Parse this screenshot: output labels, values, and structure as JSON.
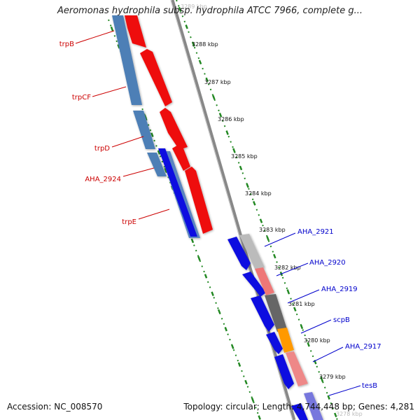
{
  "title": "Aeromonas hydrophila subsp. hydrophila ATCC 7966, complete g...",
  "footer": {
    "accession": "Accession: NC_008570",
    "topology": "Topology: circular; Length: 4,744,448 bp; Genes: 4,281"
  },
  "colors": {
    "reverse_label": "#cc0000",
    "forward_label": "#0000cc",
    "backbone": "#888888",
    "tick_green": "#228822"
  },
  "kbp_labels": [
    {
      "text": "3289 kbp",
      "faint": true
    },
    {
      "text": "3288 kbp"
    },
    {
      "text": "3287 kbp"
    },
    {
      "text": "3286 kbp"
    },
    {
      "text": "3285 kbp"
    },
    {
      "text": "3284 kbp"
    },
    {
      "text": "3283 kbp"
    },
    {
      "text": "3282 kbp"
    },
    {
      "text": "3281 kbp"
    },
    {
      "text": "3280 kbp"
    },
    {
      "text": "3279 kbp"
    },
    {
      "text": "3278 kbp",
      "faint": true
    }
  ],
  "gene_labels": [
    {
      "text": "trpB",
      "strand": "reverse"
    },
    {
      "text": "trpCF",
      "strand": "reverse"
    },
    {
      "text": "trpD",
      "strand": "reverse"
    },
    {
      "text": "AHA_2924",
      "strand": "reverse"
    },
    {
      "text": "trpE",
      "strand": "reverse"
    },
    {
      "text": "AHA_2921",
      "strand": "forward"
    },
    {
      "text": "AHA_2920",
      "strand": "forward"
    },
    {
      "text": "AHA_2919",
      "strand": "forward"
    },
    {
      "text": "scpB",
      "strand": "forward"
    },
    {
      "text": "AHA_2917",
      "strand": "forward"
    },
    {
      "text": "tesB",
      "strand": "forward"
    }
  ]
}
